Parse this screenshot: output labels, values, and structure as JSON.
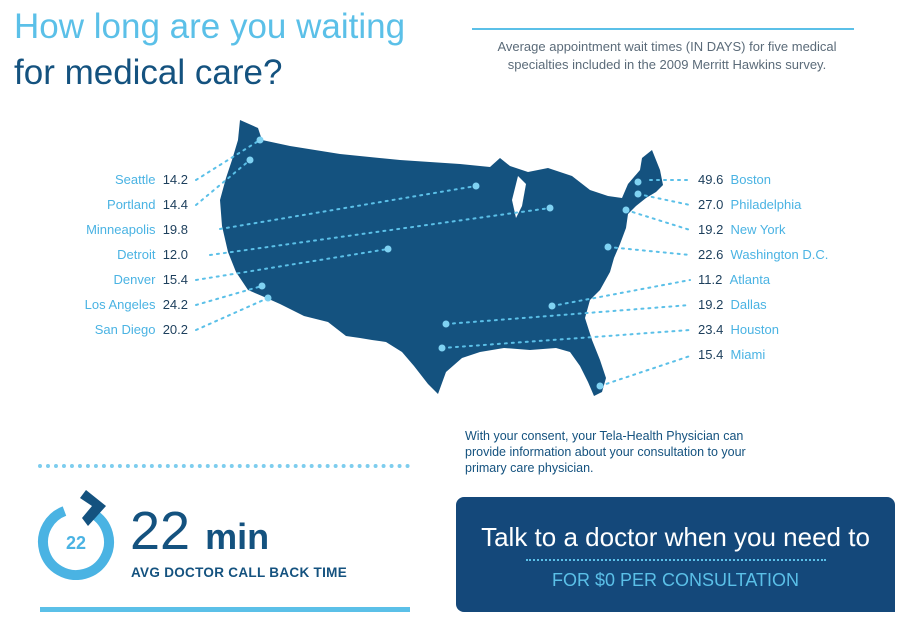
{
  "title": {
    "line1": "How long are you waiting",
    "line2": "for medical care?"
  },
  "subtitle": "Average appointment wait times (IN DAYS) for five medical specialties included in the 2009 Merritt Hawkins survey.",
  "colors": {
    "map": "#14527f",
    "accent": "#5bc0e8",
    "dark": "#14487a"
  },
  "cities_left": [
    {
      "name": "Seattle",
      "value": "14.2"
    },
    {
      "name": "Portland",
      "value": "14.4"
    },
    {
      "name": "Minneapolis",
      "value": "19.8"
    },
    {
      "name": "Detroit",
      "value": "12.0"
    },
    {
      "name": "Denver",
      "value": "15.4"
    },
    {
      "name": "Los Angeles",
      "value": "24.2"
    },
    {
      "name": "San Diego",
      "value": "20.2"
    }
  ],
  "cities_right": [
    {
      "name": "Boston",
      "value": "49.6"
    },
    {
      "name": "Philadelphia",
      "value": "27.0"
    },
    {
      "name": "New York",
      "value": "19.2"
    },
    {
      "name": "Washington D.C.",
      "value": "22.6"
    },
    {
      "name": "Atlanta",
      "value": "11.2"
    },
    {
      "name": "Dallas",
      "value": "19.2"
    },
    {
      "name": "Houston",
      "value": "23.4"
    },
    {
      "name": "Miami",
      "value": "15.4"
    }
  ],
  "consent": "With your consent, your Tela-Health Physician can provide information about your consultation to your primary care physician.",
  "timer": {
    "icon_number": "22",
    "number": "22",
    "unit": "min",
    "caption": "AVG DOCTOR CALL BACK TIME"
  },
  "cta": {
    "main": "Talk to a doctor when you need to",
    "sub": "FOR $0 PER CONSULTATION"
  }
}
